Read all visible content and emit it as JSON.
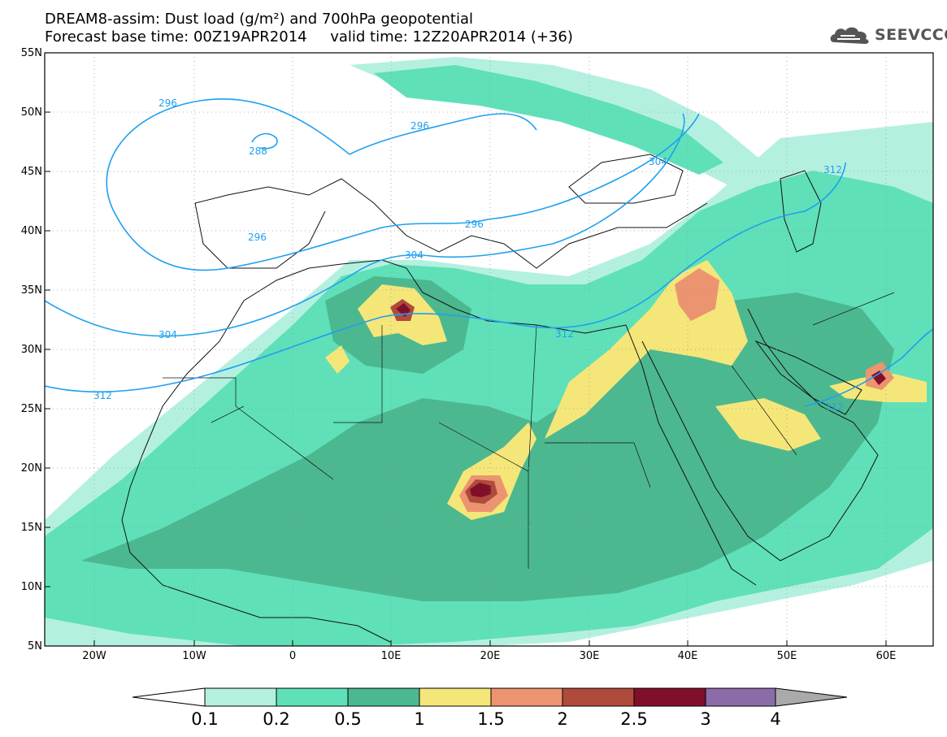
{
  "header": {
    "title_line1": "DREAM8-assim: Dust load (g/m²) and 700hPa geopotential",
    "title_line2": "Forecast base time: 00Z19APR2014     valid time: 12Z20APR2014 (+36)"
  },
  "logo": {
    "text": "SEEVCCC",
    "icon": "cloud-logo-icon",
    "color": "#555555"
  },
  "axes": {
    "lat_labels": [
      "55N",
      "50N",
      "45N",
      "40N",
      "35N",
      "30N",
      "25N",
      "20N",
      "15N",
      "10N",
      "5N"
    ],
    "lon_labels": [
      "20W",
      "10W",
      "0",
      "10E",
      "20E",
      "30E",
      "40E",
      "50E",
      "60E"
    ]
  },
  "contour_labels": [
    "296",
    "296",
    "288",
    "304",
    "296",
    "296",
    "304",
    "304",
    "312",
    "312",
    "312",
    "312"
  ],
  "colorbar": {
    "labels": [
      "0.1",
      "0.2",
      "0.5",
      "1",
      "1.5",
      "2",
      "2.5",
      "3",
      "4"
    ],
    "colors": [
      "#b4f0e0",
      "#5fe0b8",
      "#4cb890",
      "#f5e67a",
      "#ec9470",
      "#b04a3c",
      "#80102a",
      "#8c6ca8"
    ]
  }
}
